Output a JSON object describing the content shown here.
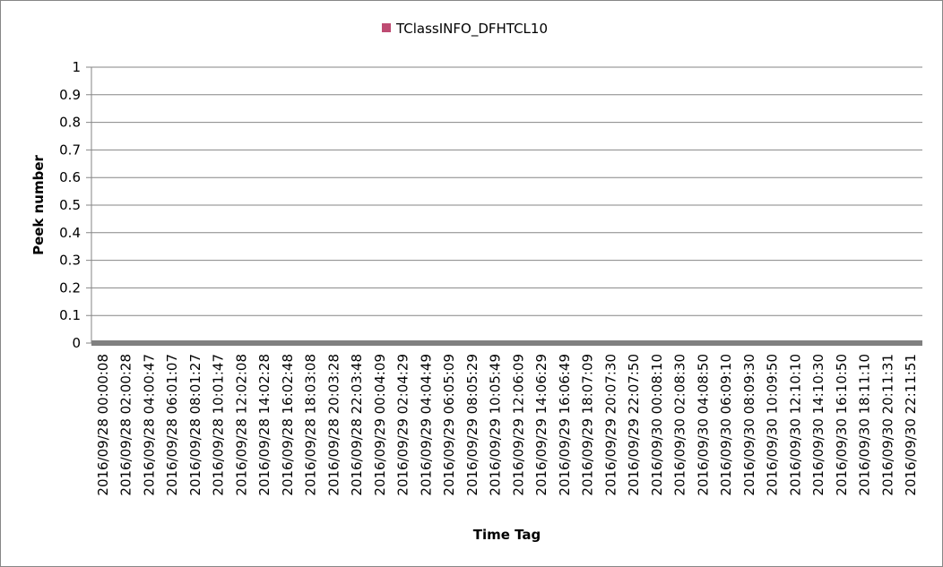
{
  "chart_data": {
    "type": "area",
    "title": "",
    "xlabel": "Time Tag",
    "ylabel": "Peek number",
    "ylim": [
      0,
      1
    ],
    "yticks": [
      "0",
      "0.1",
      "0.2",
      "0.3",
      "0.4",
      "0.5",
      "0.6",
      "0.7",
      "0.8",
      "0.9",
      "1"
    ],
    "grid": true,
    "legend_position": "top",
    "categories": [
      "2016/09/28 00:00:08",
      "2016/09/28 02:00:28",
      "2016/09/28 04:00:47",
      "2016/09/28 06:01:07",
      "2016/09/28 08:01:27",
      "2016/09/28 10:01:47",
      "2016/09/28 12:02:08",
      "2016/09/28 14:02:28",
      "2016/09/28 16:02:48",
      "2016/09/28 18:03:08",
      "2016/09/28 20:03:28",
      "2016/09/28 22:03:48",
      "2016/09/29 00:04:09",
      "2016/09/29 02:04:29",
      "2016/09/29 04:04:49",
      "2016/09/29 06:05:09",
      "2016/09/29 08:05:29",
      "2016/09/29 10:05:49",
      "2016/09/29 12:06:09",
      "2016/09/29 14:06:29",
      "2016/09/29 16:06:49",
      "2016/09/29 18:07:09",
      "2016/09/29 20:07:30",
      "2016/09/29 22:07:50",
      "2016/09/30 00:08:10",
      "2016/09/30 02:08:30",
      "2016/09/30 04:08:50",
      "2016/09/30 06:09:10",
      "2016/09/30 08:09:30",
      "2016/09/30 10:09:50",
      "2016/09/30 12:10:10",
      "2016/09/30 14:10:30",
      "2016/09/30 16:10:50",
      "2016/09/30 18:11:10",
      "2016/09/30 20:11:31",
      "2016/09/30 22:11:51"
    ],
    "series": [
      {
        "name": "TClassINFO_DFHTCL10",
        "color": "#be4b72",
        "values": [
          0,
          0,
          0,
          0,
          0,
          0,
          0,
          0,
          0,
          0,
          0,
          0,
          0,
          0,
          0,
          0,
          0,
          0,
          0,
          0,
          0,
          0,
          0,
          0,
          0,
          0,
          0,
          0,
          0,
          0,
          0,
          0,
          0,
          0,
          0,
          0
        ]
      }
    ]
  },
  "colors": {
    "grid": "#868686",
    "baseline": "#808080"
  }
}
